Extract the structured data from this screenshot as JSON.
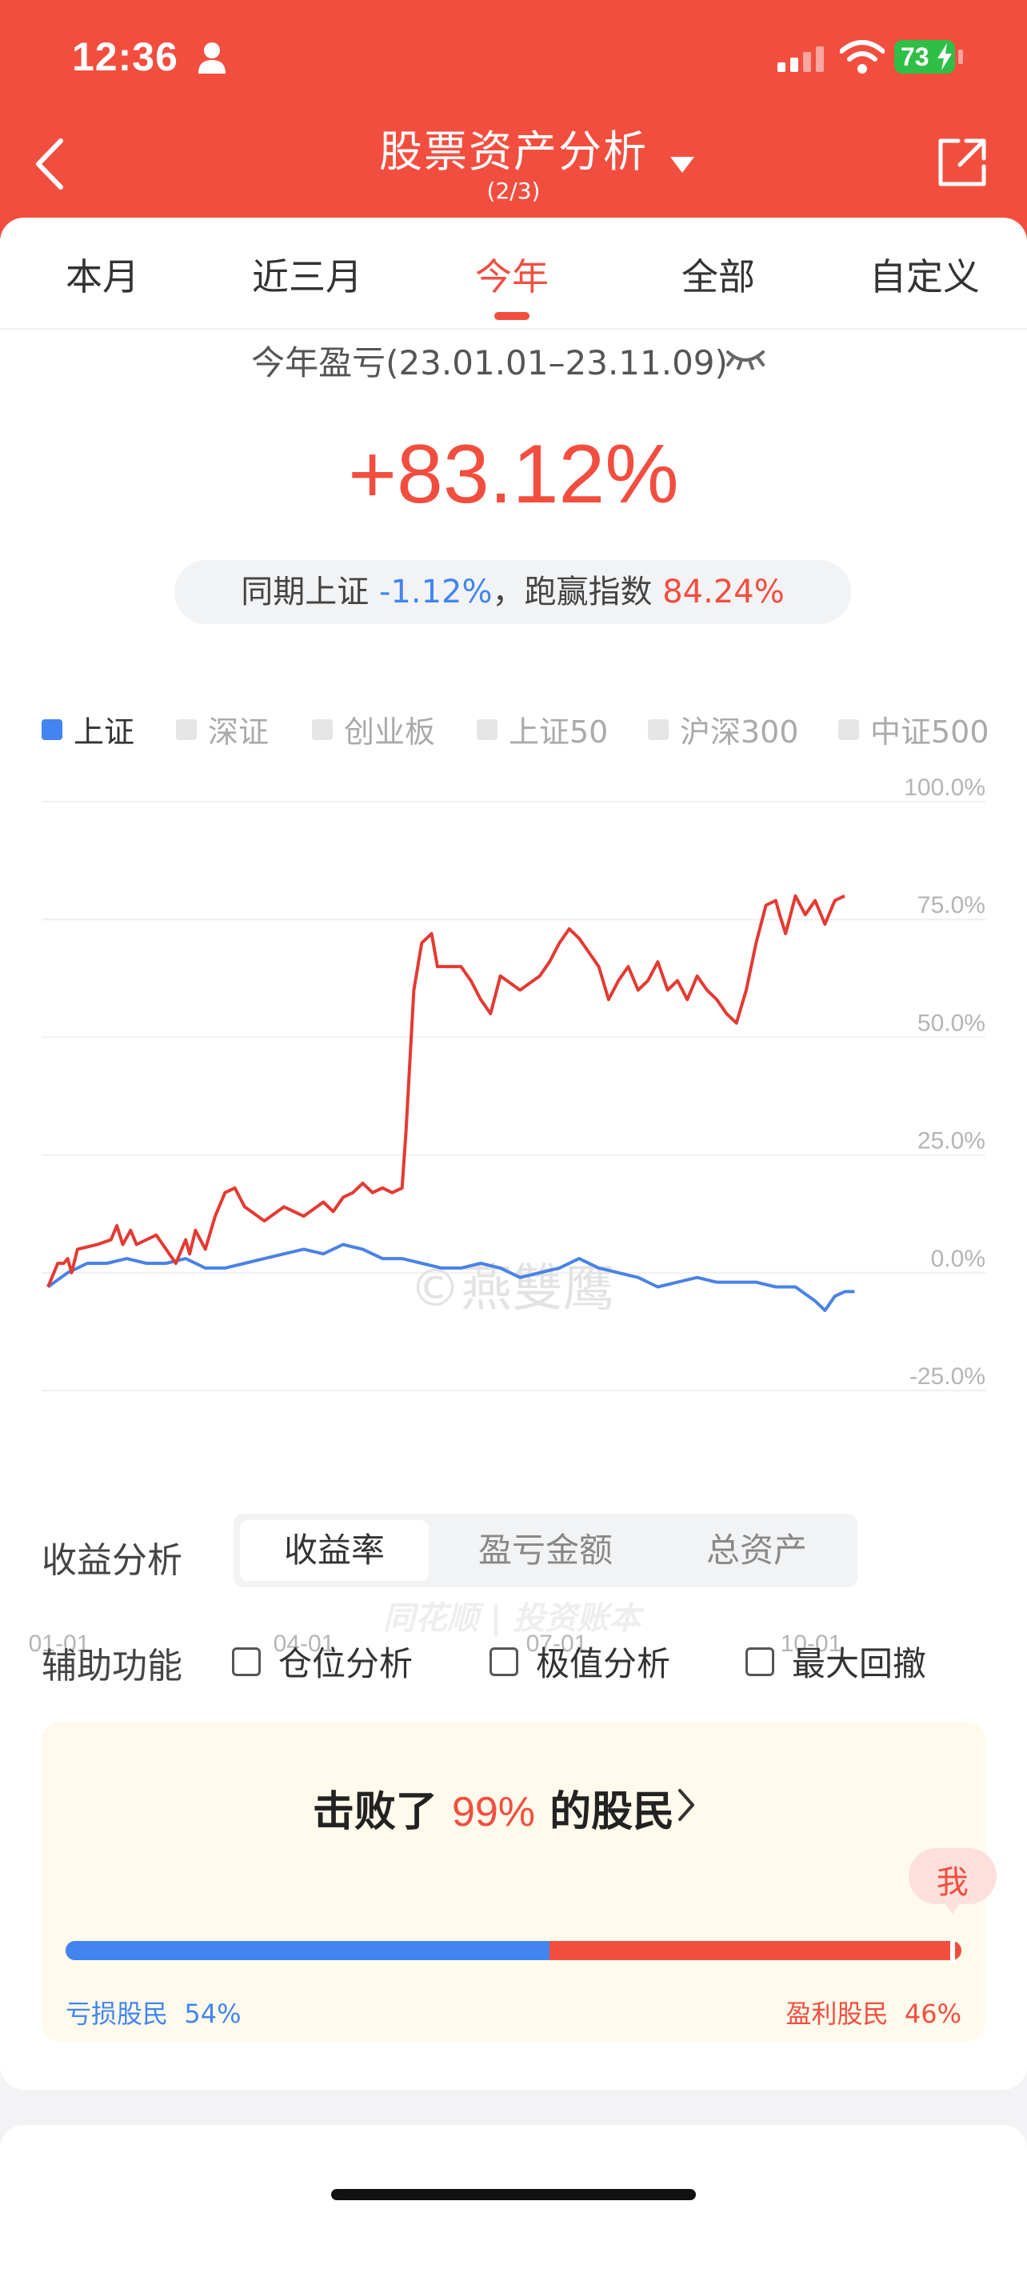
{
  "status_bar": {
    "time": "12:36",
    "battery": "73"
  },
  "header": {
    "title": "股票资产分析",
    "subtitle": "(2/3)"
  },
  "tabs": [
    {
      "label": "本月"
    },
    {
      "label": "近三月"
    },
    {
      "label": "今年",
      "active": true
    },
    {
      "label": "全部"
    },
    {
      "label": "自定义"
    }
  ],
  "summary": {
    "period_label": "今年盈亏(23.01.01–23.11.09)",
    "return_pct": "+83.12%",
    "compare_prefix": "同期上证",
    "compare_index_pct": "-1.12%",
    "compare_mid": "，跑赢指数",
    "outperform_pct": "84.24%"
  },
  "legend": [
    {
      "label": "上证",
      "active": true
    },
    {
      "label": "深证"
    },
    {
      "label": "创业板"
    },
    {
      "label": "上证50"
    },
    {
      "label": "沪深300"
    },
    {
      "label": "中证500"
    }
  ],
  "chart_data": {
    "type": "line",
    "x_ticks": [
      "01-01",
      "04-01",
      "07-01",
      "10-01"
    ],
    "y_ticks": [
      "100.0%",
      "75.0%",
      "50.0%",
      "25.0%",
      "0.0%",
      "-25.0%"
    ],
    "ylim": [
      -25,
      100
    ],
    "watermark": "©燕雙鹰",
    "brand_watermark": "同花顺 | 投资账本",
    "series": [
      {
        "name": "收益率",
        "color": "#e43a32",
        "points": [
          [
            0,
            -3
          ],
          [
            5,
            2
          ],
          [
            8,
            2
          ],
          [
            10,
            3
          ],
          [
            12,
            0
          ],
          [
            15,
            5
          ],
          [
            25,
            6
          ],
          [
            32,
            7
          ],
          [
            35,
            10
          ],
          [
            38,
            6
          ],
          [
            42,
            9
          ],
          [
            45,
            6
          ],
          [
            55,
            8
          ],
          [
            60,
            5
          ],
          [
            65,
            2
          ],
          [
            70,
            7
          ],
          [
            72,
            4
          ],
          [
            75,
            9
          ],
          [
            80,
            5
          ],
          [
            85,
            12
          ],
          [
            90,
            17
          ],
          [
            95,
            18
          ],
          [
            100,
            14
          ],
          [
            110,
            11
          ],
          [
            120,
            14
          ],
          [
            130,
            12
          ],
          [
            140,
            15
          ],
          [
            145,
            13
          ],
          [
            150,
            16
          ],
          [
            155,
            17
          ],
          [
            160,
            19
          ],
          [
            165,
            17
          ],
          [
            170,
            18
          ],
          [
            175,
            17
          ],
          [
            180,
            18
          ],
          [
            182,
            30
          ],
          [
            186,
            60
          ],
          [
            190,
            70
          ],
          [
            195,
            72
          ],
          [
            198,
            65
          ],
          [
            210,
            65
          ],
          [
            215,
            62
          ],
          [
            220,
            58
          ],
          [
            225,
            55
          ],
          [
            230,
            63
          ],
          [
            240,
            60
          ],
          [
            250,
            63
          ],
          [
            255,
            66
          ],
          [
            260,
            70
          ],
          [
            265,
            73
          ],
          [
            270,
            71
          ],
          [
            275,
            68
          ],
          [
            280,
            65
          ],
          [
            285,
            58
          ],
          [
            290,
            62
          ],
          [
            295,
            65
          ],
          [
            300,
            60
          ],
          [
            305,
            62
          ],
          [
            310,
            66
          ],
          [
            315,
            60
          ],
          [
            320,
            62
          ],
          [
            325,
            58
          ],
          [
            330,
            63
          ],
          [
            335,
            60
          ],
          [
            340,
            58
          ],
          [
            345,
            55
          ],
          [
            350,
            53
          ],
          [
            355,
            60
          ],
          [
            360,
            70
          ],
          [
            365,
            78
          ],
          [
            370,
            79
          ],
          [
            372,
            76
          ],
          [
            375,
            72
          ],
          [
            380,
            80
          ],
          [
            385,
            76
          ],
          [
            390,
            79
          ],
          [
            395,
            74
          ],
          [
            400,
            79
          ],
          [
            405,
            80
          ]
        ]
      },
      {
        "name": "上证",
        "color": "#4a82e6",
        "points": [
          [
            0,
            -3
          ],
          [
            10,
            0
          ],
          [
            20,
            2
          ],
          [
            30,
            2
          ],
          [
            40,
            3
          ],
          [
            50,
            2
          ],
          [
            60,
            2
          ],
          [
            70,
            3
          ],
          [
            80,
            1
          ],
          [
            90,
            1
          ],
          [
            100,
            2
          ],
          [
            110,
            3
          ],
          [
            120,
            4
          ],
          [
            130,
            5
          ],
          [
            140,
            4
          ],
          [
            150,
            6
          ],
          [
            160,
            5
          ],
          [
            170,
            3
          ],
          [
            180,
            3
          ],
          [
            190,
            2
          ],
          [
            200,
            1
          ],
          [
            210,
            1
          ],
          [
            220,
            2
          ],
          [
            230,
            1
          ],
          [
            240,
            -1
          ],
          [
            250,
            0
          ],
          [
            260,
            1
          ],
          [
            270,
            3
          ],
          [
            280,
            1
          ],
          [
            290,
            0
          ],
          [
            300,
            -1
          ],
          [
            310,
            -3
          ],
          [
            320,
            -2
          ],
          [
            330,
            -1
          ],
          [
            340,
            -2
          ],
          [
            350,
            -2
          ],
          [
            360,
            -2
          ],
          [
            370,
            -3
          ],
          [
            380,
            -3
          ],
          [
            390,
            -6
          ],
          [
            395,
            -8
          ],
          [
            400,
            -5
          ],
          [
            405,
            -4
          ],
          [
            410,
            -4
          ]
        ]
      }
    ]
  },
  "analysis": {
    "label": "收益分析",
    "segments": [
      {
        "label": "收益率",
        "active": true
      },
      {
        "label": "盈亏金额"
      },
      {
        "label": "总资产"
      }
    ]
  },
  "aux": {
    "label": "辅助功能",
    "options": [
      "仓位分析",
      "极值分析",
      "最大回撤"
    ]
  },
  "beat": {
    "prefix": "击败了",
    "pct": "99%",
    "suffix": "的股民",
    "me_label": "我",
    "loss_label": "亏损股民",
    "loss_pct": "54%",
    "gain_label": "盈利股民",
    "gain_pct": "46%",
    "loss_fraction": 0.54,
    "me_fraction": 0.99
  }
}
